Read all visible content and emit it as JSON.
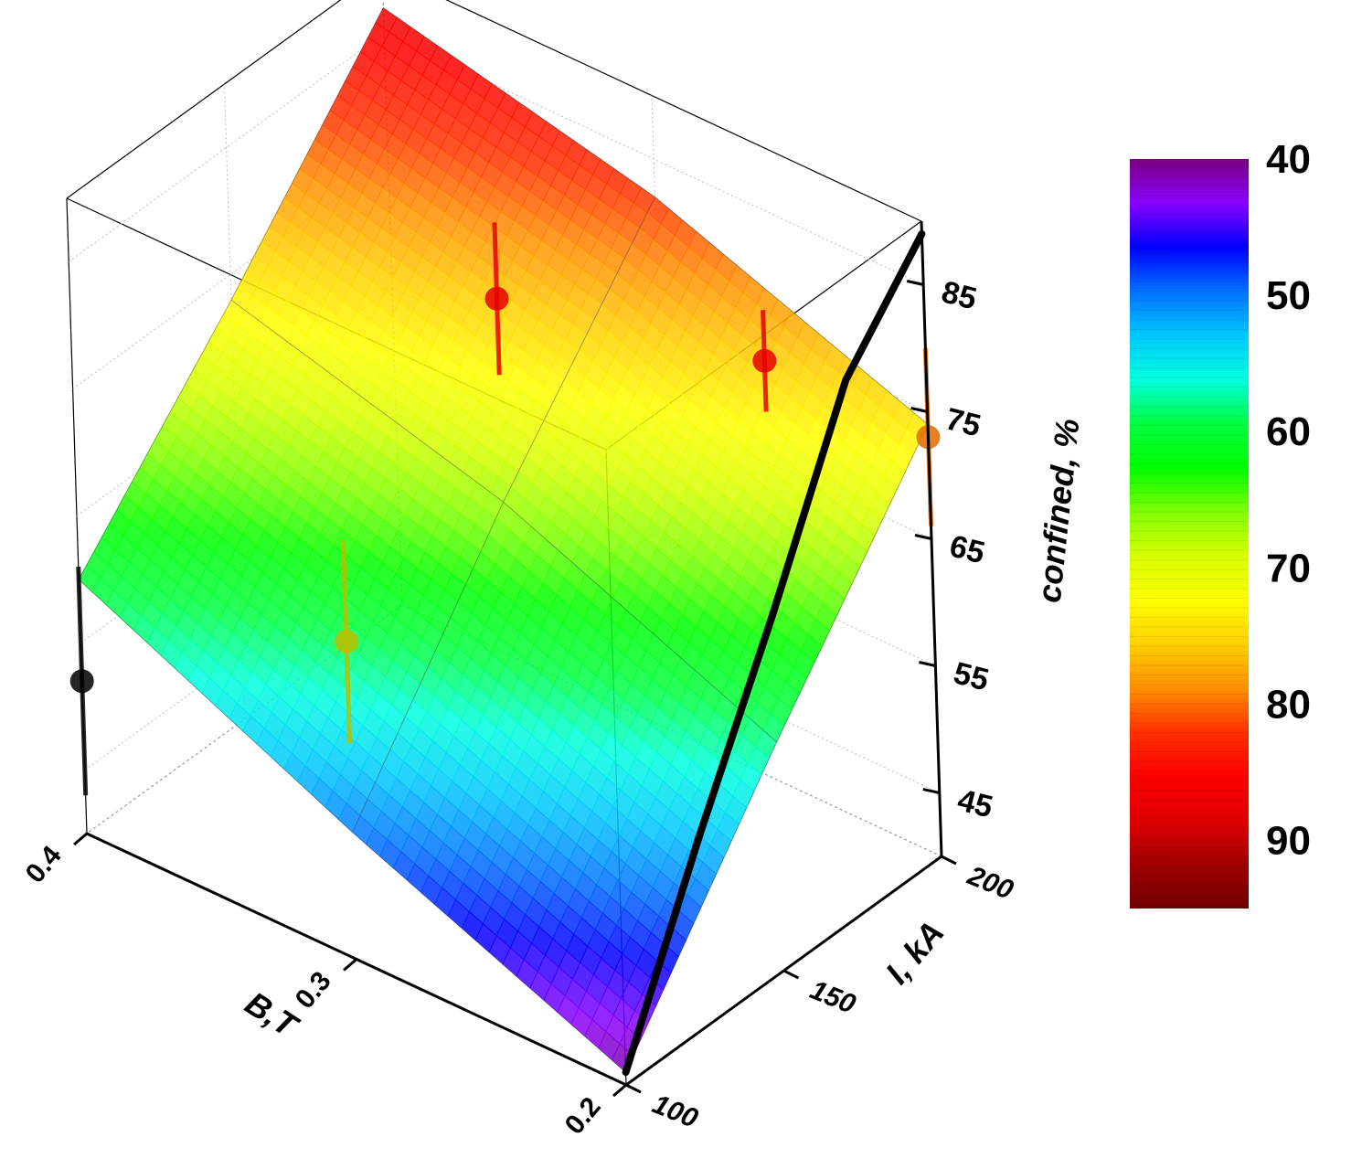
{
  "chart_data": {
    "type": "surface3d",
    "x_axis": {
      "label": "B,T",
      "ticks": [
        "0.4",
        "0.3",
        "0.2"
      ],
      "range": [
        0.2,
        0.4
      ]
    },
    "y_axis": {
      "label": "I, kA",
      "ticks": [
        "100",
        "150",
        "200"
      ],
      "range": [
        100,
        200
      ]
    },
    "z_axis": {
      "label": "confined, %",
      "ticks": [
        "45",
        "55",
        "65",
        "75",
        "85"
      ],
      "range": [
        40,
        90
      ]
    },
    "surface": {
      "B": [
        0.2,
        0.3,
        0.4
      ],
      "I": [
        100,
        150,
        200
      ],
      "confined": [
        [
          41,
          58,
          74
        ],
        [
          50,
          67,
          82
        ],
        [
          60,
          73,
          87
        ]
      ]
    },
    "points": [
      {
        "B": 0.4,
        "I": 100,
        "confined": 52,
        "err": 9,
        "color": "#000000"
      },
      {
        "B": 0.3,
        "I": 100,
        "confined": 65,
        "err": 8,
        "color": "#b8c000"
      },
      {
        "B": 0.2,
        "I": 200,
        "confined": 73,
        "err": 7,
        "color": "#e26a00"
      },
      {
        "B": 0.3,
        "I": 150,
        "confined": 83,
        "err": 6,
        "color": "#e60000"
      },
      {
        "B": 0.2,
        "I": 150,
        "confined": 88,
        "err": 4,
        "color": "#e60000"
      }
    ],
    "curve": {
      "color": "#000000",
      "points": [
        [
          0.2,
          100,
          41
        ],
        [
          0.2,
          125,
          55
        ],
        [
          0.2,
          150,
          68
        ],
        [
          0.2,
          175,
          82
        ],
        [
          0.2,
          200,
          89
        ]
      ]
    },
    "colorbar": {
      "ticks": [
        "40",
        "50",
        "60",
        "70",
        "80",
        "90"
      ],
      "range": [
        40,
        95
      ],
      "colors": [
        "#7a0080",
        "#8a00ff",
        "#0000ff",
        "#0070ff",
        "#00c8ff",
        "#00ffdf",
        "#00ff40",
        "#00ff00",
        "#80ff00",
        "#d8ff00",
        "#ffff00",
        "#ffd000",
        "#ff9000",
        "#ff3000",
        "#ff0000",
        "#e00000",
        "#a00000",
        "#700000"
      ]
    },
    "grid": true
  }
}
